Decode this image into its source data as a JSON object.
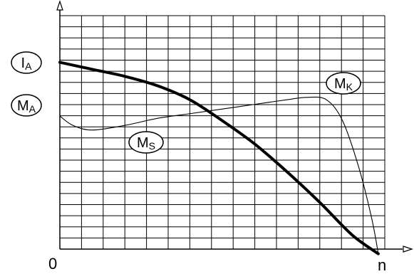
{
  "chart_data": {
    "type": "line",
    "title": "",
    "xlabel": "n",
    "ylabel": "",
    "grid": true,
    "x_origin_label": "0",
    "x_end_label": "n",
    "xlim": [
      0,
      1
    ],
    "ylim": [
      0,
      1
    ],
    "series": [
      {
        "name": "IA",
        "main": "I",
        "sub": "A",
        "style": "thick",
        "points": [
          [
            0.0,
            0.8
          ],
          [
            0.1,
            0.77
          ],
          [
            0.2,
            0.74
          ],
          [
            0.3,
            0.7
          ],
          [
            0.4,
            0.64
          ],
          [
            0.5,
            0.55
          ],
          [
            0.6,
            0.45
          ],
          [
            0.7,
            0.33
          ],
          [
            0.8,
            0.2
          ],
          [
            0.9,
            0.06
          ],
          [
            0.98,
            -0.02
          ]
        ]
      },
      {
        "name": "MK / MS / MA",
        "style": "thin",
        "points": [
          [
            0.0,
            0.57
          ],
          [
            0.04,
            0.53
          ],
          [
            0.1,
            0.51
          ],
          [
            0.2,
            0.53
          ],
          [
            0.3,
            0.56
          ],
          [
            0.4,
            0.58
          ],
          [
            0.5,
            0.6
          ],
          [
            0.6,
            0.62
          ],
          [
            0.7,
            0.64
          ],
          [
            0.76,
            0.65
          ],
          [
            0.82,
            0.64
          ],
          [
            0.87,
            0.55
          ],
          [
            0.92,
            0.35
          ],
          [
            0.96,
            0.13
          ],
          [
            0.98,
            -0.02
          ]
        ]
      }
    ],
    "labels": [
      {
        "id": "ia-label",
        "main": "I",
        "sub": "A"
      },
      {
        "id": "ma-label",
        "main": "M",
        "sub": "A"
      },
      {
        "id": "mk-label",
        "main": "M",
        "sub": "K"
      },
      {
        "id": "ms-label",
        "main": "M",
        "sub": "S"
      }
    ]
  }
}
